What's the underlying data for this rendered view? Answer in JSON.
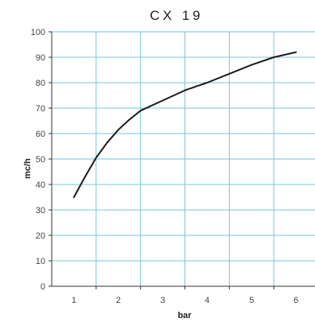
{
  "chart_data": {
    "type": "line",
    "title": "CX 19",
    "xlabel": "bar",
    "ylabel": "mc/h",
    "xlim": [
      0.5,
      6.5
    ],
    "ylim": [
      0,
      100
    ],
    "x_ticks": [
      "1",
      "2",
      "3",
      "4",
      "5",
      "6"
    ],
    "y_ticks": [
      "0",
      "10",
      "20",
      "30",
      "40",
      "50",
      "60",
      "70",
      "80",
      "90",
      "100"
    ],
    "grid": true,
    "series": [
      {
        "x": [
          1,
          1.25,
          1.5,
          1.75,
          2,
          2.25,
          2.5,
          3,
          3.5,
          4,
          4.5,
          5,
          5.5,
          6
        ],
        "y": [
          35,
          43,
          50.5,
          56.5,
          61.5,
          65.5,
          69,
          73,
          77,
          80,
          83.5,
          87,
          90,
          92
        ]
      }
    ],
    "colors": {
      "line": "#1a1a1a",
      "grid": "#73c6dd",
      "axis": "#333333"
    }
  }
}
